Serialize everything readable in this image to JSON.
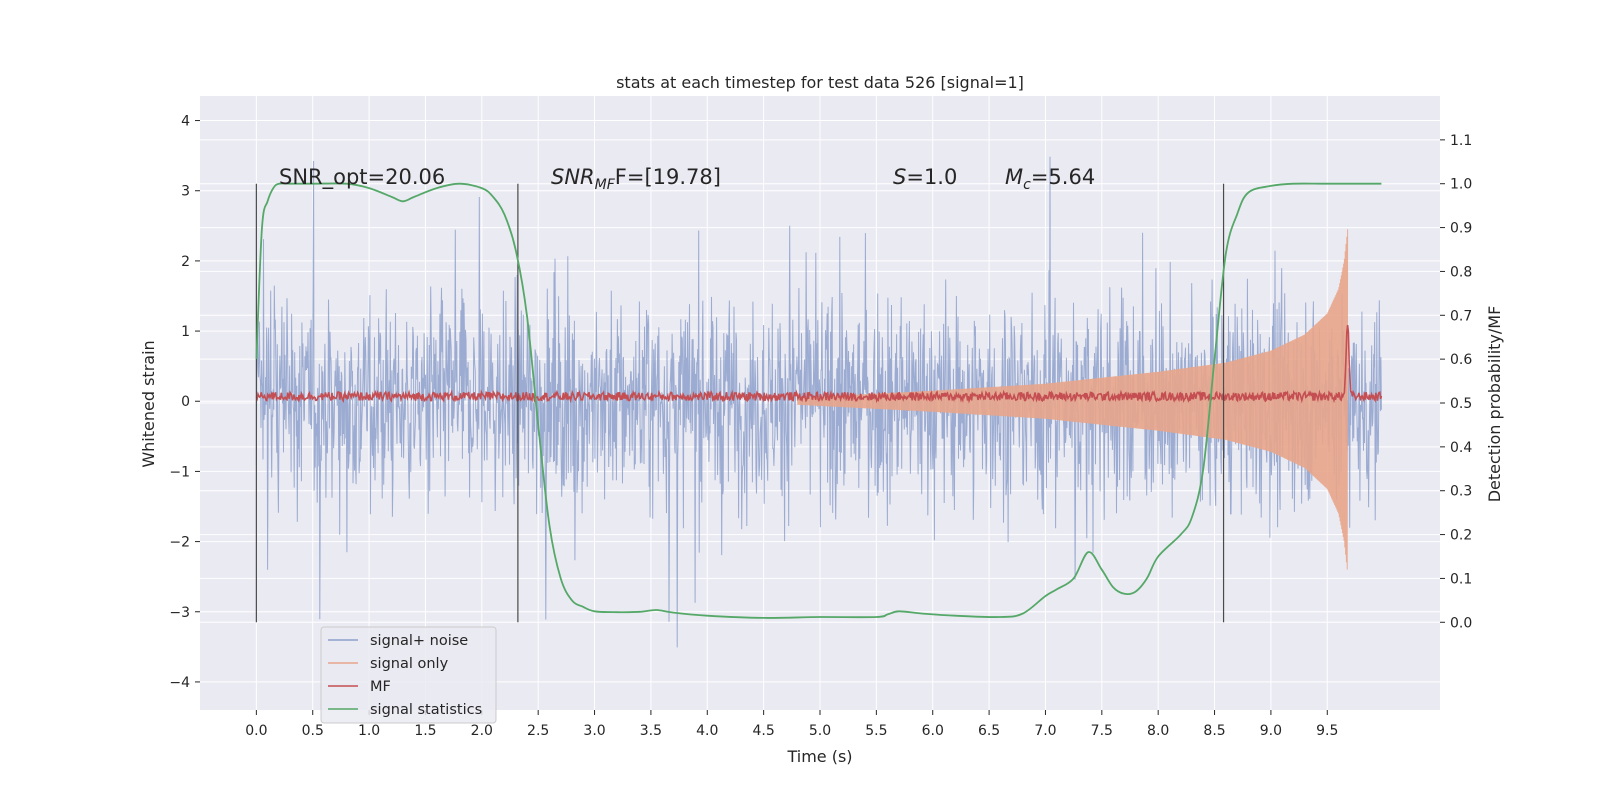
{
  "chart_data": {
    "type": "line",
    "title": "stats at each timestep for test data 526 [signal=1]",
    "xlabel": "Time (s)",
    "ylabel": "Whitened strain",
    "ylabel_right": "Detection probability/MF",
    "xlim": [
      -0.5,
      10.5
    ],
    "ylim": [
      -4.4,
      4.35
    ],
    "ylim_right": [
      -0.2,
      1.2
    ],
    "grid": true,
    "legend_position": "lower-left",
    "x_ticks": [
      "0.0",
      "0.5",
      "1.0",
      "1.5",
      "2.0",
      "2.5",
      "3.0",
      "3.5",
      "4.0",
      "4.5",
      "5.0",
      "5.5",
      "6.0",
      "6.5",
      "7.0",
      "7.5",
      "8.0",
      "8.5",
      "9.0",
      "9.5"
    ],
    "y_ticks": [
      "−4",
      "−3",
      "−2",
      "−1",
      "0",
      "1",
      "2",
      "3",
      "4"
    ],
    "y_ticks_right": [
      "0.0",
      "0.1",
      "0.2",
      "0.3",
      "0.4",
      "0.5",
      "0.6",
      "0.7",
      "0.8",
      "0.9",
      "1.0",
      "1.1"
    ],
    "annotations": {
      "snr_opt": "SNR_opt=20.06",
      "snr_mf_prefix": "SNR",
      "snr_mf_sub": "MF",
      "snr_mf_suffix": "F=[19.78]",
      "s_var": "S",
      "s_value": "=1.0",
      "mc_var": "M",
      "mc_sub": "c",
      "mc_value": "=5.64"
    },
    "vertical_lines_x": [
      0.0,
      2.32,
      8.58
    ],
    "vertical_line_range_right": [
      0.0,
      1.0
    ],
    "series": [
      {
        "name": "signal+ noise",
        "color": "#8da0cb",
        "description_range": [
          -4.0,
          4.0
        ],
        "x_range": [
          0.0,
          9.98
        ]
      },
      {
        "name": "signal only",
        "color": "#e8a58b",
        "envelope": [
          {
            "x": 4.8,
            "amp": 0.05
          },
          {
            "x": 6.0,
            "amp": 0.15
          },
          {
            "x": 7.0,
            "amp": 0.25
          },
          {
            "x": 8.0,
            "amp": 0.42
          },
          {
            "x": 8.6,
            "amp": 0.55
          },
          {
            "x": 9.0,
            "amp": 0.72
          },
          {
            "x": 9.3,
            "amp": 0.95
          },
          {
            "x": 9.5,
            "amp": 1.25
          },
          {
            "x": 9.6,
            "amp": 1.6
          },
          {
            "x": 9.65,
            "amp": 2.0
          },
          {
            "x": 9.68,
            "amp": 2.45
          }
        ]
      },
      {
        "name": "MF",
        "color": "#c44e52",
        "baseline": 0.5,
        "peak_x": 9.68,
        "peak_value": 0.67
      },
      {
        "name": "signal statistics",
        "color": "#55a868",
        "x": [
          0.0,
          0.05,
          0.1,
          0.15,
          0.2,
          0.3,
          0.5,
          0.8,
          1.0,
          1.2,
          1.3,
          1.4,
          1.6,
          1.8,
          2.0,
          2.1,
          2.2,
          2.3,
          2.4,
          2.5,
          2.6,
          2.7,
          2.8,
          2.9,
          3.0,
          3.2,
          3.4,
          3.55,
          3.7,
          4.0,
          4.5,
          5.0,
          5.5,
          5.6,
          5.7,
          5.9,
          6.2,
          6.6,
          6.8,
          7.0,
          7.1,
          7.25,
          7.38,
          7.5,
          7.6,
          7.7,
          7.8,
          7.9,
          8.0,
          8.2,
          8.3,
          8.4,
          8.5,
          8.6,
          8.7,
          8.8,
          9.0,
          9.2,
          9.5,
          9.98
        ],
        "y": [
          0.6,
          0.9,
          0.96,
          0.99,
          1.0,
          1.0,
          1.0,
          1.0,
          0.99,
          0.97,
          0.96,
          0.97,
          0.99,
          1.0,
          0.99,
          0.97,
          0.93,
          0.85,
          0.7,
          0.45,
          0.22,
          0.1,
          0.05,
          0.035,
          0.025,
          0.023,
          0.024,
          0.028,
          0.022,
          0.015,
          0.01,
          0.012,
          0.012,
          0.018,
          0.025,
          0.02,
          0.015,
          0.012,
          0.02,
          0.06,
          0.075,
          0.1,
          0.16,
          0.12,
          0.08,
          0.065,
          0.07,
          0.1,
          0.15,
          0.2,
          0.24,
          0.35,
          0.6,
          0.84,
          0.93,
          0.98,
          0.995,
          1.0,
          1.0,
          1.0
        ]
      }
    ]
  }
}
